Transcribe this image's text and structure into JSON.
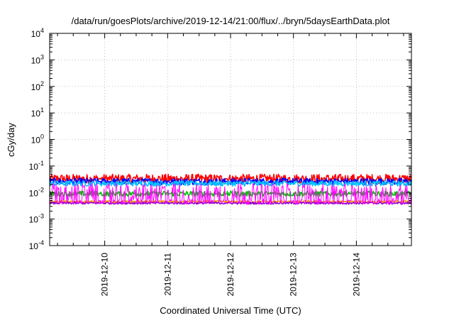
{
  "chart_data": {
    "type": "line",
    "title": "/data/run/goesPlots/archive/2019-12-14/21:00/flux/../bryn/5daysEarthData.plot",
    "xlabel": "Coordinated Universal Time (UTC)",
    "ylabel": "cGy/day",
    "yscale": "log",
    "ylim": [
      0.0001,
      10000
    ],
    "yticks": [
      {
        "value": 0.0001,
        "base": "10",
        "exp": "-4"
      },
      {
        "value": 0.001,
        "base": "10",
        "exp": "-3"
      },
      {
        "value": 0.01,
        "base": "10",
        "exp": "-2"
      },
      {
        "value": 0.1,
        "base": "10",
        "exp": "-1"
      },
      {
        "value": 1,
        "base": "10",
        "exp": "0"
      },
      {
        "value": 10,
        "base": "10",
        "exp": "1"
      },
      {
        "value": 100,
        "base": "10",
        "exp": "2"
      },
      {
        "value": 1000,
        "base": "10",
        "exp": "3"
      },
      {
        "value": 10000,
        "base": "10",
        "exp": "4"
      }
    ],
    "xlim": [
      "2019-12-09 03:00",
      "2019-12-14 21:00"
    ],
    "xticks": [
      "2019-12-10",
      "2019-12-11",
      "2019-12-12",
      "2019-12-13",
      "2019-12-14"
    ],
    "grid": true,
    "legend": "none",
    "gaps": [
      [
        "2019-12-09 21:30",
        "2019-12-09 22:15"
      ],
      [
        "2019-12-11 22:00",
        "2019-12-11 22:40"
      ],
      [
        "2019-12-13 21:20",
        "2019-12-13 22:00"
      ]
    ],
    "series": [
      {
        "color": "#ff0000",
        "base": 0.033,
        "spread": 0.35,
        "spikes": false
      },
      {
        "color": "#0000ff",
        "base": 0.026,
        "spread": 0.25,
        "spikes": false
      },
      {
        "color": "#00bfff",
        "base": 0.022,
        "spread": 0.2,
        "spikes": false
      },
      {
        "color": "#00c000",
        "base": 0.009,
        "spread": 0.2,
        "spikes": false
      },
      {
        "color": "#ff8c00",
        "base": 0.0045,
        "spread": 0.08,
        "spikes": false
      },
      {
        "color": "#9400d3",
        "base": 0.004,
        "spread": 0.08,
        "spikes": false
      },
      {
        "color": "#ff00ff",
        "base": 0.005,
        "spread": 0.15,
        "spikes": true,
        "peak": 0.022
      }
    ]
  }
}
